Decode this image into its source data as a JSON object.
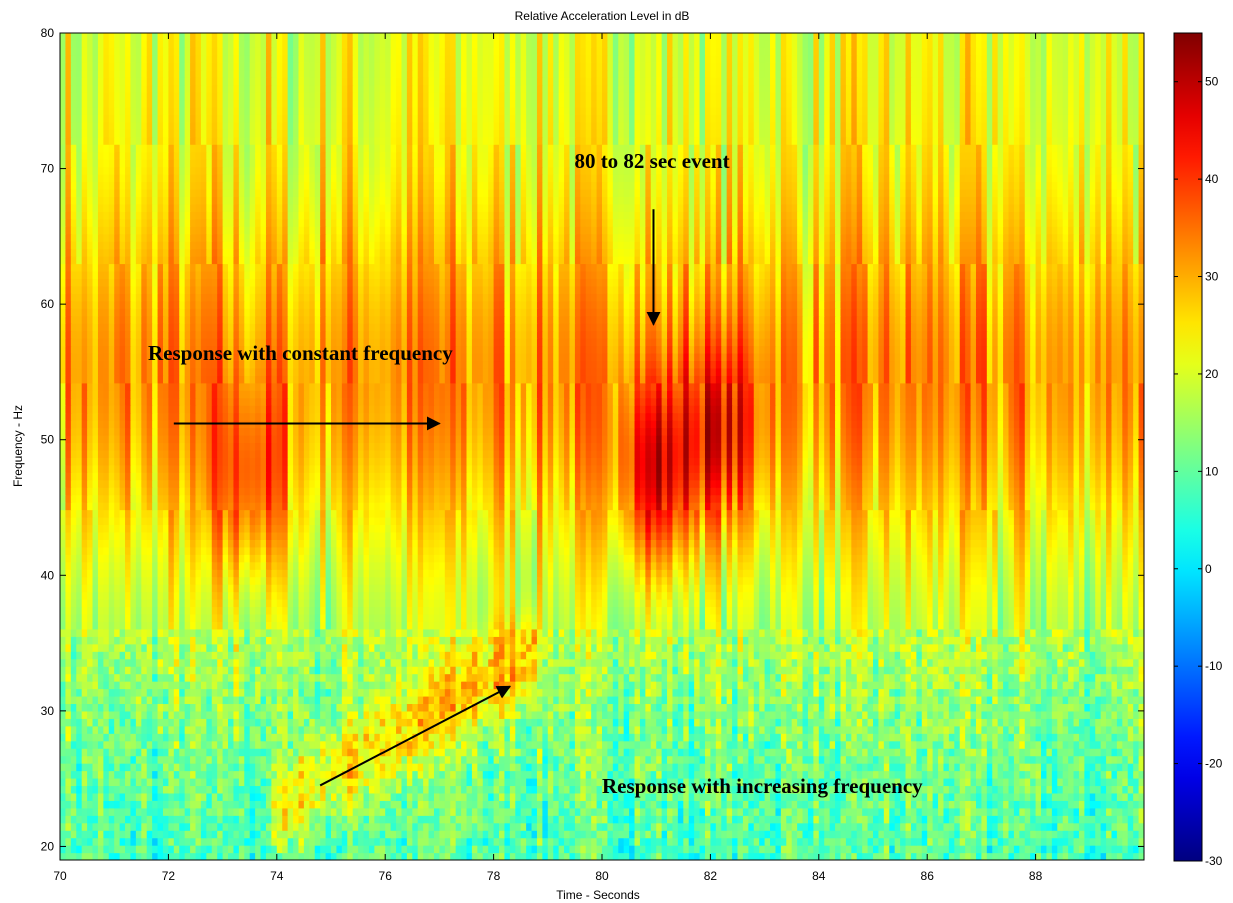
{
  "chart_data": {
    "type": "heatmap",
    "title": "Relative Acceleration Level in dB",
    "xlabel": "Time - Seconds",
    "ylabel": "Frequency - Hz",
    "xlim": [
      70,
      90
    ],
    "ylim": [
      19,
      80
    ],
    "x_ticks": [
      70,
      72,
      74,
      76,
      78,
      80,
      82,
      84,
      86,
      88
    ],
    "y_ticks": [
      20,
      30,
      40,
      50,
      60,
      70,
      80
    ],
    "colorbar": {
      "range": [
        -30,
        55
      ],
      "ticks": [
        -30,
        -20,
        -10,
        0,
        10,
        20,
        30,
        40,
        50
      ],
      "colormap": "jet"
    },
    "colorbar_colors": [
      "#00008f",
      "#0000ff",
      "#00ffff",
      "#ffff00",
      "#ff0000",
      "#800000"
    ],
    "features": [
      {
        "label": "band",
        "freq_range_hz": [
          38,
          70
        ],
        "time_range_s": [
          70,
          90
        ],
        "level_db": 32
      },
      {
        "label": "hotspot",
        "time_s": 81.0,
        "freq_hz": 47,
        "level_db": 52
      },
      {
        "label": "hotspot",
        "time_s": 73.5,
        "freq_hz": 46,
        "level_db": 45
      },
      {
        "label": "hotspot",
        "time_s": 82.2,
        "freq_hz": 50,
        "level_db": 47
      },
      {
        "label": "low-frequency track",
        "time_s": [
          74.5,
          78.2
        ],
        "freq_hz": [
          24,
          33
        ],
        "level_db": 35
      }
    ],
    "annotations": [
      {
        "text": "80 to 82 sec event",
        "arrow_from": [
          80.95,
          67
        ],
        "arrow_to": [
          80.95,
          58.5
        ]
      },
      {
        "text": "Response with constant frequency",
        "arrow_from": [
          72.1,
          51.2
        ],
        "arrow_to": [
          77.0,
          51.2
        ]
      },
      {
        "text": "Response with increasing frequency",
        "arrow_from": [
          74.8,
          24.5
        ],
        "arrow_to": [
          78.3,
          31.8
        ]
      }
    ]
  }
}
